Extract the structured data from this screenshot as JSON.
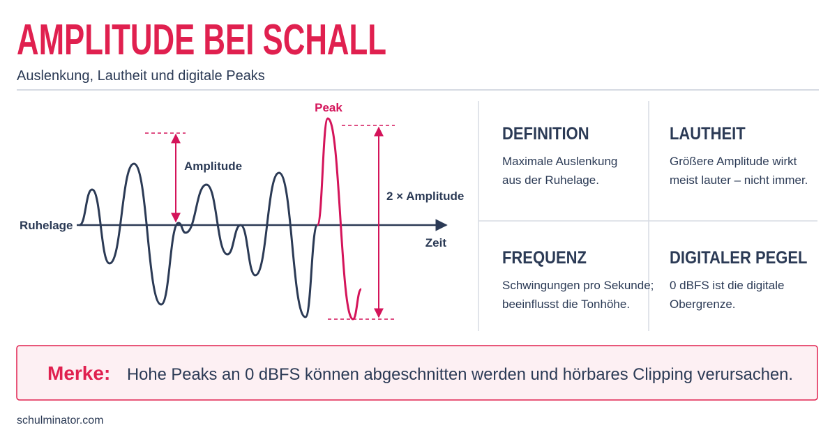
{
  "header": {
    "title": "AMPLITUDE BEI SCHALL",
    "subtitle": "Auslenkung, Lautheit und digitale Peaks"
  },
  "diagram": {
    "peak_label": "Peak",
    "amplitude_label": "Amplitude",
    "double_amplitude_label": "2 × Amplitude",
    "rest_label": "Ruhelage",
    "time_label": "Zeit"
  },
  "cards": [
    {
      "title": "DEFINITION",
      "lines": [
        "Maximale Auslenkung",
        "aus der Ruhelage."
      ]
    },
    {
      "title": "LAUTHEIT",
      "lines": [
        "Größere Amplitude wirkt",
        "meist lauter – nicht immer."
      ]
    },
    {
      "title": "FREQUENZ",
      "lines": [
        "Schwingungen pro Sekunde;",
        "beeinflusst die Tonhöhe."
      ]
    },
    {
      "title": "DIGITALER PEGEL",
      "lines": [
        "0 dBFS ist die digitale",
        "Obergrenze."
      ]
    }
  ],
  "note": {
    "label": "Merke:",
    "text": "Hohe Peaks an 0 dBFS können abgeschnitten werden und hörbares Clipping verursachen."
  },
  "footer": "schulminator.com"
}
